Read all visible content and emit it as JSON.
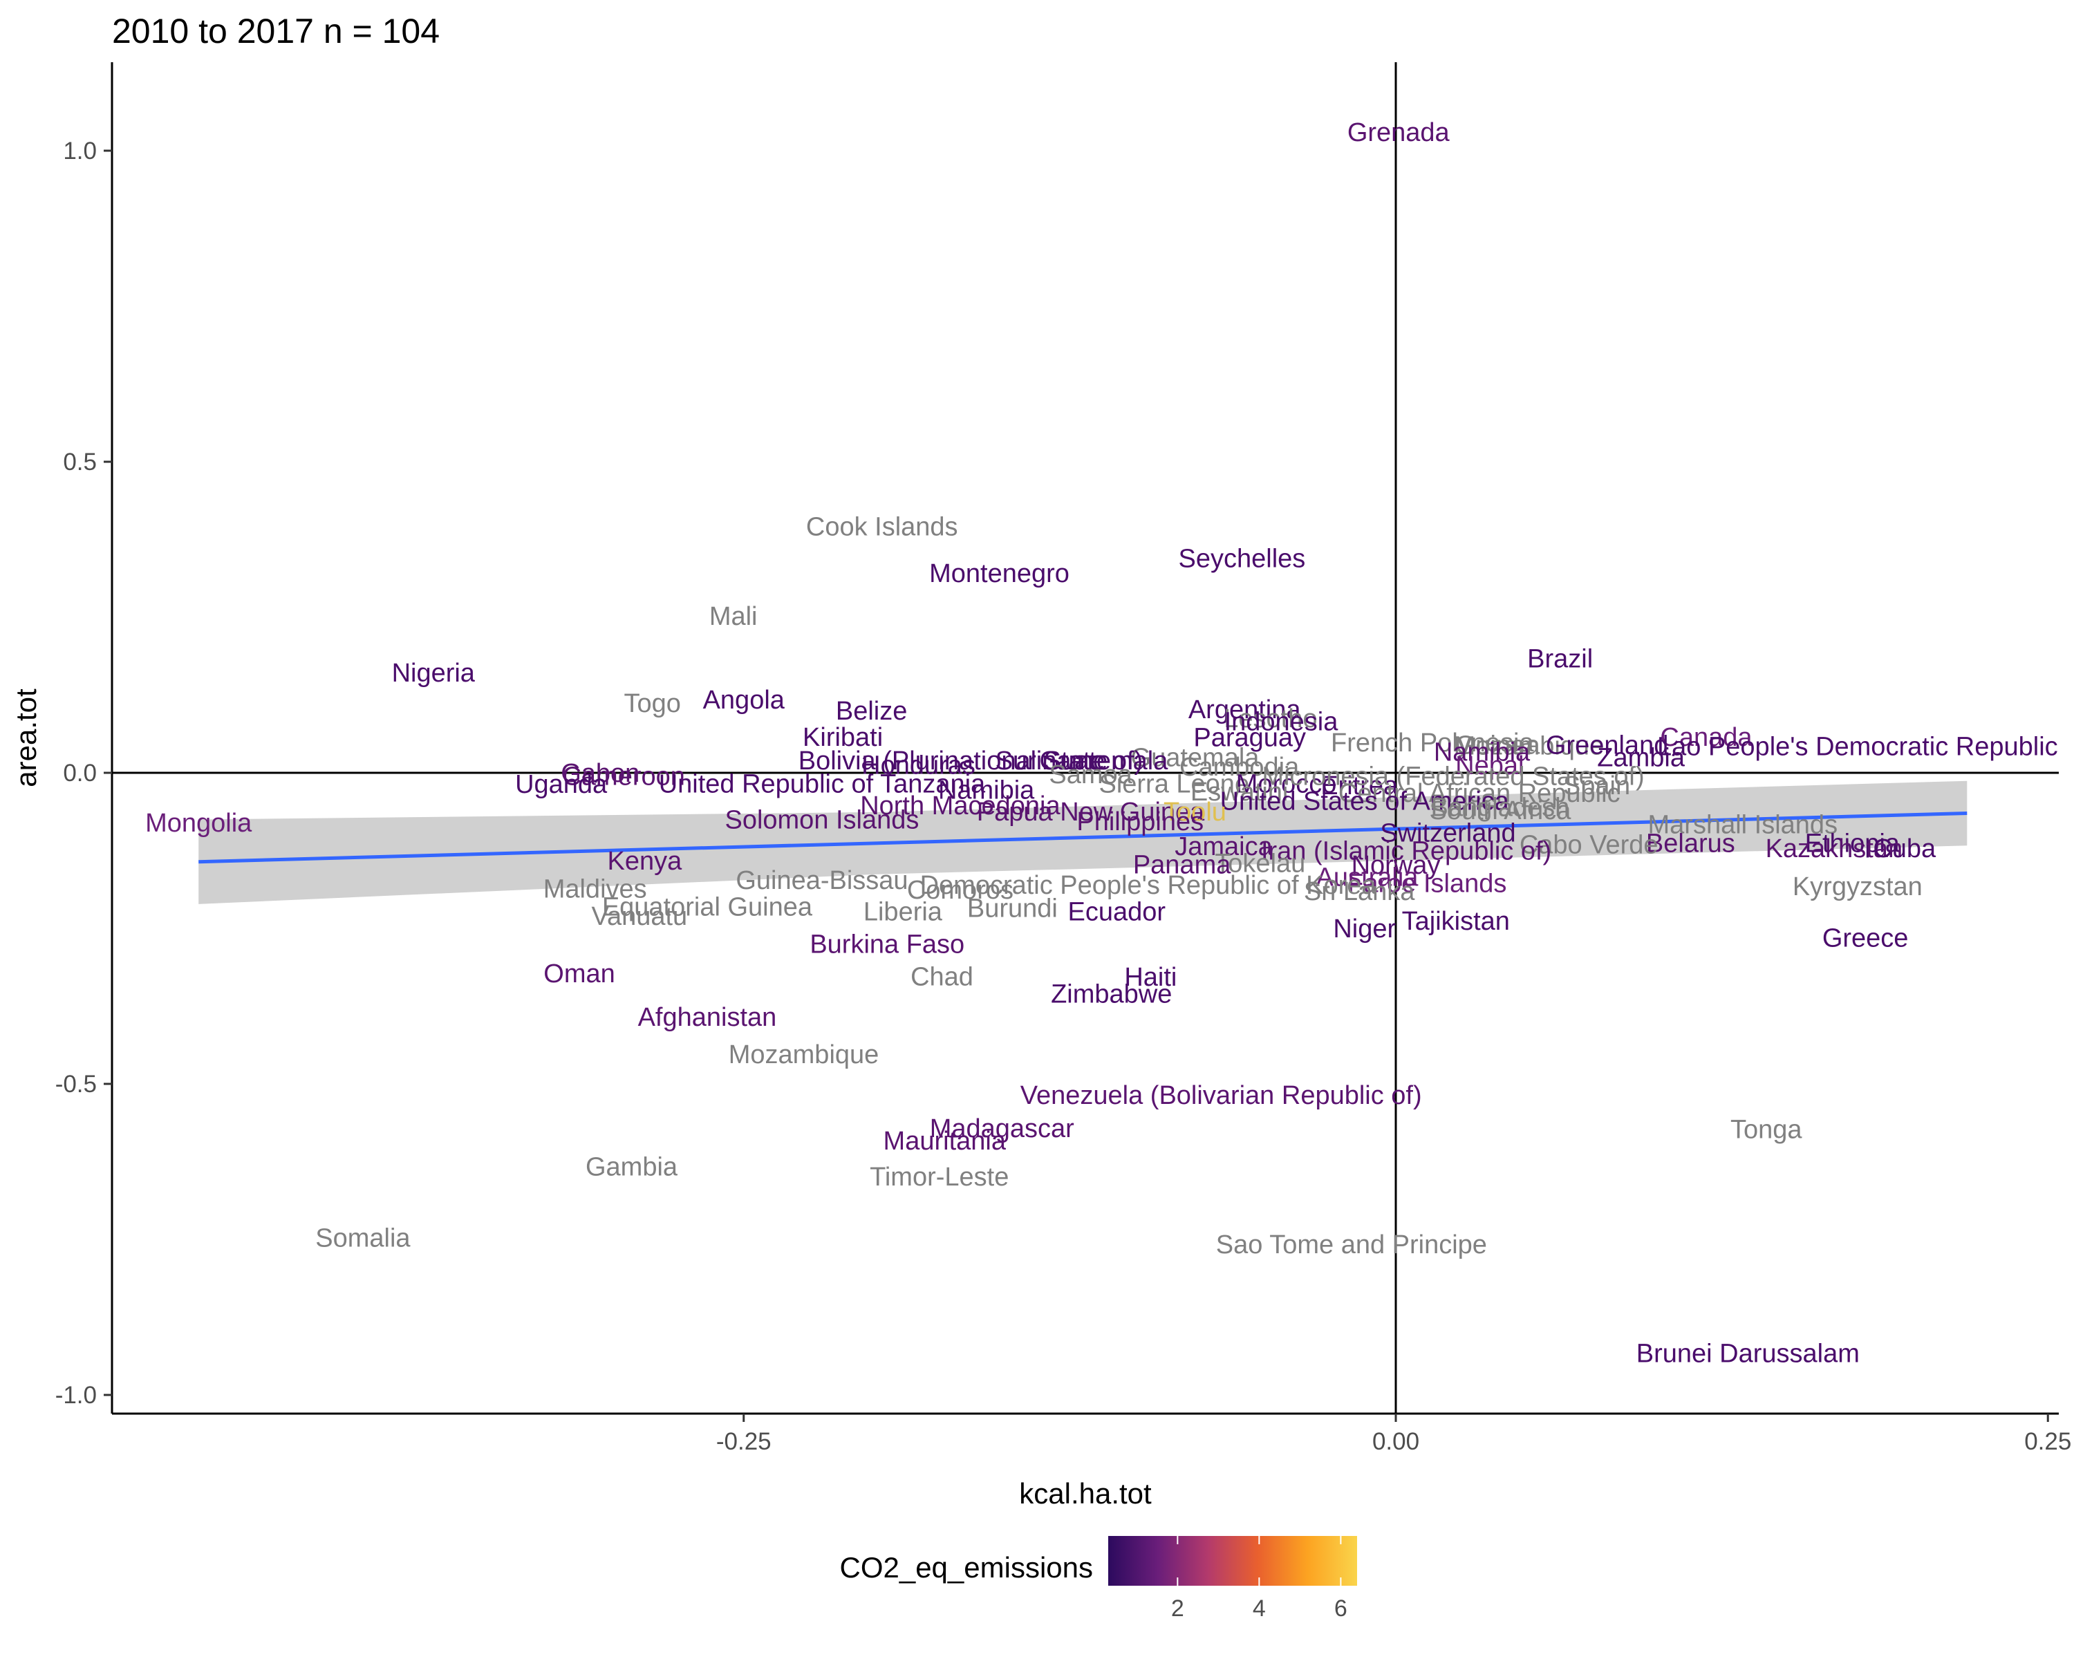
{
  "chart_data": {
    "type": "scatter",
    "title": "2010 to 2017 n =  104",
    "xlabel": "kcal.ha.tot",
    "ylabel": "area.tot",
    "xlim": [
      -0.5,
      0.25
    ],
    "ylim": [
      -1.03,
      1.12
    ],
    "x_ticks": [
      -0.25,
      0.0,
      0.25
    ],
    "x_tick_labels": [
      "-0.25",
      "0.00",
      "0.25"
    ],
    "y_ticks": [
      -1.0,
      -0.5,
      0.0,
      0.5,
      1.0
    ],
    "y_tick_labels": [
      "-1.0",
      "-0.5",
      "0.0",
      "0.5",
      "1.0"
    ],
    "grid": false,
    "reference_lines": {
      "x": 0,
      "y": 0
    },
    "trend": {
      "type": "linear",
      "color": "#3366ff",
      "band_color": "#d0d0d0",
      "x_range": [
        -0.459,
        0.219
      ],
      "y_range": [
        -0.143,
        -0.065
      ],
      "band_halfwidth": [
        0.068,
        0.05,
        0.052
      ],
      "band_center_x": -0.2
    },
    "legend": {
      "title": "CO2_eq_emissions",
      "position": "bottom",
      "gradient": [
        "#2c0a5e",
        "#6a1e7a",
        "#b33a6c",
        "#e9602e",
        "#fca321",
        "#fad44b"
      ],
      "range": [
        0.3,
        6.4
      ],
      "ticks": [
        2,
        4,
        6
      ],
      "tick_labels": [
        "2",
        "4",
        "6"
      ],
      "na_color": "#808080"
    },
    "points": [
      {
        "label": "Grenada",
        "x": 0.001,
        "y": 1.03,
        "c": "#5a1470"
      },
      {
        "label": "Cook Islands",
        "x": -0.197,
        "y": 0.396,
        "c": "#808080"
      },
      {
        "label": "Seychelles",
        "x": -0.059,
        "y": 0.345,
        "c": "#4a0c6b"
      },
      {
        "label": "Montenegro",
        "x": -0.152,
        "y": 0.321,
        "c": "#4a0c6b"
      },
      {
        "label": "Mali",
        "x": -0.254,
        "y": 0.252,
        "c": "#808080"
      },
      {
        "label": "Brazil",
        "x": 0.063,
        "y": 0.184,
        "c": "#4a0c6b"
      },
      {
        "label": "Nigeria",
        "x": -0.369,
        "y": 0.161,
        "c": "#4a0c6b"
      },
      {
        "label": "Togo",
        "x": -0.285,
        "y": 0.112,
        "c": "#808080"
      },
      {
        "label": "Angola",
        "x": -0.25,
        "y": 0.118,
        "c": "#4a0c6b"
      },
      {
        "label": "Belize",
        "x": -0.201,
        "y": 0.1,
        "c": "#4a0c6b"
      },
      {
        "label": "Argentina",
        "x": -0.058,
        "y": 0.102,
        "c": "#4a0c6b"
      },
      {
        "label": "Lesotho",
        "x": -0.048,
        "y": 0.088,
        "c": "#808080"
      },
      {
        "label": "Indonesia",
        "x": -0.044,
        "y": 0.083,
        "c": "#4a0c6b"
      },
      {
        "label": "Kiribati",
        "x": -0.212,
        "y": 0.058,
        "c": "#4a0c6b"
      },
      {
        "label": "Paraguay",
        "x": -0.056,
        "y": 0.057,
        "c": "#4a0c6b"
      },
      {
        "label": "Canada",
        "x": 0.119,
        "y": 0.058,
        "c": "#6a1e7a"
      },
      {
        "label": "French Polynesia",
        "x": 0.014,
        "y": 0.049,
        "c": "#808080"
      },
      {
        "label": "Guinea",
        "x": 0.039,
        "y": 0.045,
        "c": "#808080"
      },
      {
        "label": "Mozambique",
        "x": 0.051,
        "y": 0.044,
        "c": "#808080"
      },
      {
        "label": "Greenland",
        "x": 0.081,
        "y": 0.045,
        "c": "#4a0c6b"
      },
      {
        "label": "Lao People's Democratic Republic",
        "x": 0.177,
        "y": 0.043,
        "c": "#4a0c6b"
      },
      {
        "label": "Namibia",
        "x": 0.033,
        "y": 0.034,
        "c": "#5a1470"
      },
      {
        "label": "Zambia",
        "x": 0.094,
        "y": 0.025,
        "c": "#4a0c6b"
      },
      {
        "label": "Guatemala",
        "x": -0.077,
        "y": 0.025,
        "c": "#808080"
      },
      {
        "label": "Honduras",
        "x": -0.183,
        "y": 0.013,
        "c": "#4a0c6b"
      },
      {
        "label": "Bolivia (Plurinational State of)",
        "x": -0.163,
        "y": 0.02,
        "c": "#4a0c6b"
      },
      {
        "label": "Suriname",
        "x": -0.132,
        "y": 0.02,
        "c": "#4a0c6b"
      },
      {
        "label": "Guatemala",
        "x": -0.112,
        "y": 0.02,
        "c": "#4a0c6b"
      },
      {
        "label": "Cambodia",
        "x": -0.06,
        "y": 0.01,
        "c": "#808080"
      },
      {
        "label": "Nepal",
        "x": 0.036,
        "y": 0.012,
        "c": "#6a1e7a"
      },
      {
        "label": "Gabon",
        "x": -0.305,
        "y": 0.0,
        "c": "#5a1470"
      },
      {
        "label": "Cameroon",
        "x": -0.296,
        "y": -0.005,
        "c": "#5a1470"
      },
      {
        "label": "Uganda",
        "x": -0.32,
        "y": -0.018,
        "c": "#4a0c6b"
      },
      {
        "label": "United Republic of Tanzania",
        "x": -0.22,
        "y": -0.017,
        "c": "#4a0c6b"
      },
      {
        "label": "Namibia",
        "x": -0.157,
        "y": -0.027,
        "c": "#4a0c6b"
      },
      {
        "label": "Samoa",
        "x": -0.117,
        "y": -0.002,
        "c": "#808080"
      },
      {
        "label": "Sierra Leone",
        "x": -0.085,
        "y": -0.017,
        "c": "#808080"
      },
      {
        "label": "Morocco",
        "x": -0.042,
        "y": -0.017,
        "c": "#4a0c6b"
      },
      {
        "label": "Eritrea",
        "x": -0.014,
        "y": -0.02,
        "c": "#4a0c6b"
      },
      {
        "label": "Micronesia (Federated States of)",
        "x": 0.022,
        "y": -0.005,
        "c": "#808080"
      },
      {
        "label": "Central African Republic",
        "x": 0.032,
        "y": -0.032,
        "c": "#808080"
      },
      {
        "label": "Spain",
        "x": 0.077,
        "y": -0.02,
        "c": "#808080"
      },
      {
        "label": "Eswatini",
        "x": -0.06,
        "y": -0.03,
        "c": "#808080"
      },
      {
        "label": "United States of America",
        "x": -0.012,
        "y": -0.045,
        "c": "#4a0c6b"
      },
      {
        "label": "Bangladesh",
        "x": 0.04,
        "y": -0.055,
        "c": "#808080"
      },
      {
        "label": "South Africa",
        "x": 0.04,
        "y": -0.06,
        "c": "#808080"
      },
      {
        "label": "North Macedonia",
        "x": -0.167,
        "y": -0.052,
        "c": "#5a1470"
      },
      {
        "label": "Papua New Guinea",
        "x": -0.117,
        "y": -0.062,
        "c": "#5a1470"
      },
      {
        "label": "Toolu",
        "x": -0.077,
        "y": -0.062,
        "c": "#e0c050"
      },
      {
        "label": "Solomon Islands",
        "x": -0.22,
        "y": -0.075,
        "c": "#5a1470"
      },
      {
        "label": "Philippines",
        "x": -0.098,
        "y": -0.078,
        "c": "#5a1470"
      },
      {
        "label": "Mongolia",
        "x": -0.459,
        "y": -0.08,
        "c": "#6a1e7a"
      },
      {
        "label": "Marshall Islands",
        "x": 0.133,
        "y": -0.083,
        "c": "#808080"
      },
      {
        "label": "Switzerland",
        "x": 0.02,
        "y": -0.096,
        "c": "#4a0c6b"
      },
      {
        "label": "Belarus",
        "x": 0.113,
        "y": -0.113,
        "c": "#5a1470"
      },
      {
        "label": "Cabo Verde",
        "x": 0.074,
        "y": -0.115,
        "c": "#808080"
      },
      {
        "label": "Jamaica",
        "x": -0.066,
        "y": -0.118,
        "c": "#5a1470"
      },
      {
        "label": "Iran (Islamic Republic of)",
        "x": 0.004,
        "y": -0.125,
        "c": "#5a1470"
      },
      {
        "label": "Ethiopia",
        "x": 0.175,
        "y": -0.113,
        "c": "#4a0c6b"
      },
      {
        "label": "Kazakhstan",
        "x": 0.168,
        "y": -0.121,
        "c": "#5a1470"
      },
      {
        "label": "Cuba",
        "x": 0.195,
        "y": -0.121,
        "c": "#4a0c6b"
      },
      {
        "label": "Kenya",
        "x": -0.288,
        "y": -0.141,
        "c": "#5a1470"
      },
      {
        "label": "Tokelau",
        "x": -0.052,
        "y": -0.145,
        "c": "#808080"
      },
      {
        "label": "Panama",
        "x": -0.082,
        "y": -0.147,
        "c": "#5a1470"
      },
      {
        "label": "Norway",
        "x": 0.0,
        "y": -0.148,
        "c": "#5a1470"
      },
      {
        "label": "Guinea-Bissau",
        "x": -0.22,
        "y": -0.172,
        "c": "#808080"
      },
      {
        "label": "Australia",
        "x": -0.011,
        "y": -0.167,
        "c": "#6a1e7a"
      },
      {
        "label": "Faroe Islands",
        "x": 0.012,
        "y": -0.177,
        "c": "#6a1e7a"
      },
      {
        "label": "Kyrgyzstan",
        "x": 0.177,
        "y": -0.182,
        "c": "#808080"
      },
      {
        "label": "Maldives",
        "x": -0.307,
        "y": -0.186,
        "c": "#808080"
      },
      {
        "label": "Democratic People's Republic of Korea",
        "x": -0.095,
        "y": -0.18,
        "c": "#808080"
      },
      {
        "label": "Comoros",
        "x": -0.167,
        "y": -0.188,
        "c": "#808080"
      },
      {
        "label": "Sri Lanka",
        "x": -0.014,
        "y": -0.19,
        "c": "#808080"
      },
      {
        "label": "Equatorial Guinea",
        "x": -0.264,
        "y": -0.215,
        "c": "#808080"
      },
      {
        "label": "Vanuatu",
        "x": -0.29,
        "y": -0.23,
        "c": "#808080"
      },
      {
        "label": "Liberia",
        "x": -0.189,
        "y": -0.223,
        "c": "#808080"
      },
      {
        "label": "Burundi",
        "x": -0.147,
        "y": -0.217,
        "c": "#808080"
      },
      {
        "label": "Ecuador",
        "x": -0.107,
        "y": -0.223,
        "c": "#4a0c6b"
      },
      {
        "label": "Tajikistan",
        "x": 0.023,
        "y": -0.238,
        "c": "#4a0c6b"
      },
      {
        "label": "Niger",
        "x": -0.012,
        "y": -0.25,
        "c": "#4a0c6b"
      },
      {
        "label": "Greece",
        "x": 0.18,
        "y": -0.265,
        "c": "#4a0c6b"
      },
      {
        "label": "Burkina Faso",
        "x": -0.195,
        "y": -0.275,
        "c": "#5a1470"
      },
      {
        "label": "Oman",
        "x": -0.313,
        "y": -0.322,
        "c": "#5a1470"
      },
      {
        "label": "Chad",
        "x": -0.174,
        "y": -0.327,
        "c": "#808080"
      },
      {
        "label": "Haiti",
        "x": -0.094,
        "y": -0.328,
        "c": "#4a0c6b"
      },
      {
        "label": "Zimbabwe",
        "x": -0.109,
        "y": -0.355,
        "c": "#4a0c6b"
      },
      {
        "label": "Afghanistan",
        "x": -0.264,
        "y": -0.392,
        "c": "#5a1470"
      },
      {
        "label": "Mozambique",
        "x": -0.227,
        "y": -0.452,
        "c": "#808080"
      },
      {
        "label": "Venezuela (Bolivarian Republic of)",
        "x": -0.067,
        "y": -0.518,
        "c": "#5a1470"
      },
      {
        "label": "Madagascar",
        "x": -0.151,
        "y": -0.571,
        "c": "#5a1470"
      },
      {
        "label": "Mauritania",
        "x": -0.173,
        "y": -0.591,
        "c": "#5a1470"
      },
      {
        "label": "Tonga",
        "x": 0.142,
        "y": -0.573,
        "c": "#808080"
      },
      {
        "label": "Gambia",
        "x": -0.293,
        "y": -0.633,
        "c": "#808080"
      },
      {
        "label": "Timor-Leste",
        "x": -0.175,
        "y": -0.649,
        "c": "#808080"
      },
      {
        "label": "Somalia",
        "x": -0.396,
        "y": -0.747,
        "c": "#808080"
      },
      {
        "label": "Sao Tome and Principe",
        "x": -0.017,
        "y": -0.758,
        "c": "#808080"
      },
      {
        "label": "Brunei Darussalam",
        "x": 0.135,
        "y": -0.933,
        "c": "#4a0c6b"
      }
    ]
  }
}
